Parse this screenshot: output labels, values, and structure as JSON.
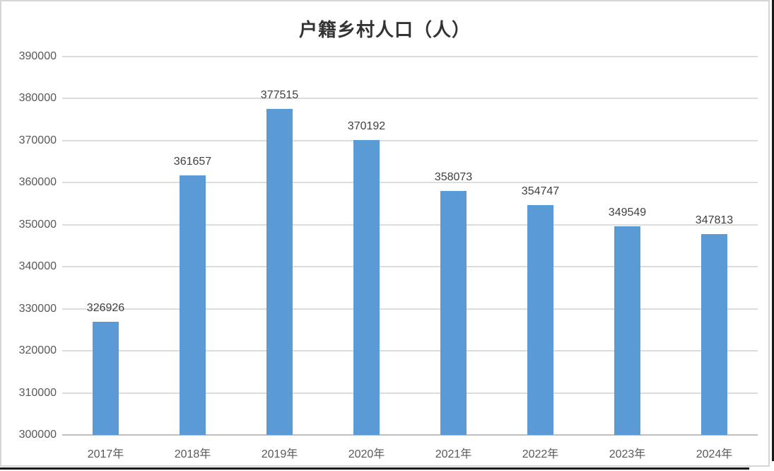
{
  "chart_data": {
    "type": "bar",
    "title": "户籍乡村人口（人）",
    "categories": [
      "2017年",
      "2018年",
      "2019年",
      "2020年",
      "2021年",
      "2022年",
      "2023年",
      "2024年"
    ],
    "values": [
      326926,
      361657,
      377515,
      370192,
      358073,
      354747,
      349549,
      347813
    ],
    "data_labels": [
      "326926",
      "361657",
      "377515",
      "370192",
      "358073",
      "354747",
      "349549",
      "347813"
    ],
    "ylabel": "",
    "xlabel": "",
    "ylim": [
      300000,
      390000
    ],
    "ytick_step": 10000,
    "ytick_labels": [
      "390000",
      "380000",
      "370000",
      "360000",
      "350000",
      "340000",
      "330000",
      "320000",
      "310000",
      "300000"
    ],
    "grid": true,
    "legend": "none",
    "colors": {
      "bar": "#5b9bd5",
      "gridline": "#dcdcdc",
      "axis_line": "#bfbfbf",
      "tick_label": "#595959",
      "data_label": "#404040",
      "title": "#333333",
      "chart_border": "#d5d5d5",
      "window_edge": "#1a1a1a",
      "background": "#ffffff"
    }
  }
}
